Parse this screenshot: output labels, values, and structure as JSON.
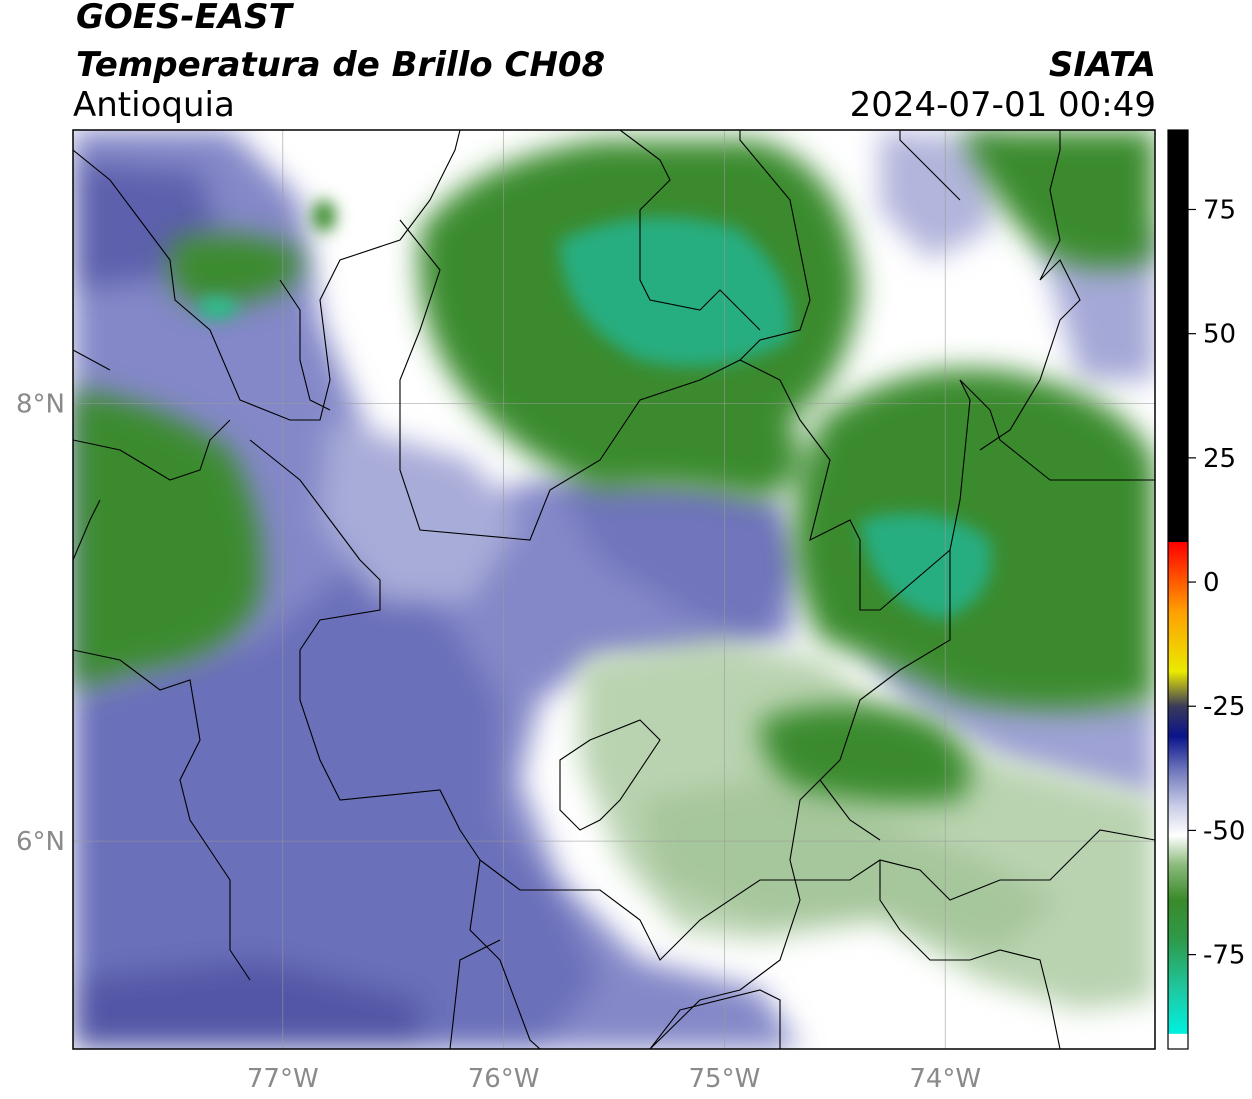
{
  "title": {
    "line1": "GOES-EAST",
    "line2": "Temperatura de Brillo CH08",
    "region": "Antioquia",
    "agency": "SIATA",
    "datetime": "2024-07-01 00:49"
  },
  "map": {
    "lon_range": [
      -77.95,
      -73.05
    ],
    "lat_range": [
      5.05,
      9.25
    ],
    "lon_ticks": [
      {
        "value": -77,
        "label": "77°W"
      },
      {
        "value": -76,
        "label": "76°W"
      },
      {
        "value": -75,
        "label": "75°W"
      },
      {
        "value": -74,
        "label": "74°W"
      }
    ],
    "lat_ticks": [
      {
        "value": 8,
        "label": "8°N"
      },
      {
        "value": 6,
        "label": "6°N"
      }
    ],
    "grid": true
  },
  "colorbar": {
    "range": [
      -94,
      91
    ],
    "ticks": [
      {
        "value": 75,
        "label": "75"
      },
      {
        "value": 50,
        "label": "50"
      },
      {
        "value": 25,
        "label": "25"
      },
      {
        "value": 0,
        "label": "0"
      },
      {
        "value": -25,
        "label": "-25"
      },
      {
        "value": -50,
        "label": "-50"
      },
      {
        "value": -75,
        "label": "-75"
      }
    ],
    "stops": [
      {
        "value": -94,
        "color": "#ffffff"
      },
      {
        "value": -91,
        "color": "#ffffff"
      },
      {
        "value": -90.9,
        "color": "#00f0e0"
      },
      {
        "value": -82,
        "color": "#1ec8a0"
      },
      {
        "value": -72,
        "color": "#2e9a4a"
      },
      {
        "value": -64,
        "color": "#3a8a2a"
      },
      {
        "value": -57,
        "color": "#8aba7a"
      },
      {
        "value": -51,
        "color": "#ffffff"
      },
      {
        "value": -45,
        "color": "#c8cce6"
      },
      {
        "value": -38,
        "color": "#7078bc"
      },
      {
        "value": -31,
        "color": "#0a148a"
      },
      {
        "value": -25,
        "color": "#3a3a5a"
      },
      {
        "value": -18,
        "color": "#eaea00"
      },
      {
        "value": -6,
        "color": "#ffa000"
      },
      {
        "value": 8,
        "color": "#ff0000"
      },
      {
        "value": 8.1,
        "color": "#000000"
      },
      {
        "value": 91,
        "color": "#000000"
      }
    ]
  },
  "fields": {
    "background": "#ffffff",
    "cloud_green": "#3a8a2a",
    "cloud_teal": "#22b88a",
    "light_green": "#b6d1ad",
    "purple": "#7a7fc2",
    "dark_purple": "#5a5fae"
  }
}
